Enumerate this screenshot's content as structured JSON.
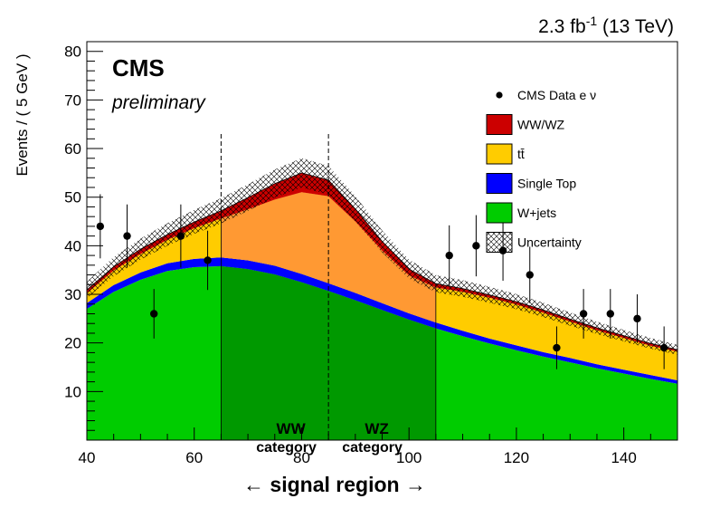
{
  "chart_data": {
    "type": "area",
    "lumi_label": "2.3 fb",
    "lumi_superscript": "-1",
    "lumi_energy": " (13 TeV)",
    "experiment": "CMS",
    "status": "preliminary",
    "xlabel": "← signal region →",
    "ylabel": "Events / ( 5 GeV )",
    "xlim": [
      40,
      150
    ],
    "ylim": [
      0,
      82
    ],
    "xticks": [
      40,
      60,
      80,
      100,
      120,
      140
    ],
    "yticks": [
      10,
      20,
      30,
      40,
      50,
      60,
      70,
      80
    ],
    "x": [
      40,
      45,
      50,
      55,
      60,
      65,
      70,
      75,
      80,
      85,
      90,
      95,
      100,
      105,
      110,
      115,
      120,
      125,
      130,
      135,
      140,
      145,
      150
    ],
    "series": [
      {
        "name": "W+jets",
        "color": "#00cc00",
        "values": [
          27.0,
          30.5,
          33.0,
          34.8,
          35.6,
          35.8,
          35.2,
          34.1,
          32.5,
          30.7,
          28.8,
          26.8,
          24.8,
          23.0,
          21.4,
          19.9,
          18.5,
          17.2,
          16.0,
          14.8,
          13.7,
          12.6,
          11.6
        ]
      },
      {
        "name": "Single Top",
        "color": "#0000ff",
        "values": [
          1.2,
          1.4,
          1.5,
          1.6,
          1.7,
          1.8,
          1.8,
          1.8,
          1.7,
          1.6,
          1.5,
          1.4,
          1.3,
          1.2,
          1.1,
          1.0,
          1.0,
          0.9,
          0.9,
          0.8,
          0.8,
          0.8,
          0.7
        ]
      },
      {
        "name": "tt̄",
        "color": "#ffcc00",
        "values": [
          2.0,
          3.0,
          3.8,
          4.8,
          6.3,
          8.0,
          10.5,
          13.6,
          16.8,
          17.9,
          14.7,
          10.8,
          7.8,
          7.2,
          8.0,
          8.4,
          8.4,
          8.1,
          7.5,
          7.0,
          6.5,
          6.0,
          5.9
        ]
      },
      {
        "name": "WW/WZ",
        "color": "#cc0000",
        "values": [
          0.7,
          0.8,
          1.0,
          1.1,
          1.3,
          1.6,
          2.4,
          3.3,
          4.0,
          3.3,
          2.6,
          1.9,
          1.3,
          0.8,
          0.7,
          0.6,
          0.6,
          0.6,
          0.5,
          0.5,
          0.5,
          0.5,
          0.4
        ]
      }
    ],
    "uncertainty_band": {
      "name": "Uncertainty",
      "relative": 0.055
    },
    "data": {
      "name": "CMS Data e ν",
      "x": [
        42.5,
        47.5,
        52.5,
        57.5,
        62.5,
        107.5,
        112.5,
        117.5,
        122.5,
        127.5,
        132.5,
        137.5,
        142.5,
        147.5
      ],
      "y": [
        44,
        42,
        26,
        42,
        37,
        38,
        40,
        39,
        34,
        19,
        26,
        26,
        25,
        19
      ],
      "err": [
        6.6,
        6.5,
        5.1,
        6.5,
        6.1,
        6.2,
        6.3,
        6.2,
        5.8,
        4.4,
        5.1,
        5.1,
        5.0,
        4.4
      ]
    },
    "signal_region": [
      65,
      105
    ],
    "category_boundary": 85,
    "categories": [
      {
        "name": "WW",
        "sub": "category",
        "center": 78
      },
      {
        "name": "WZ",
        "sub": "category",
        "center": 94
      }
    ],
    "legend_position": "top-right",
    "colors": {
      "wjets_signal_region": "#009900",
      "ttbar_signal_region": "#ff9933"
    }
  }
}
